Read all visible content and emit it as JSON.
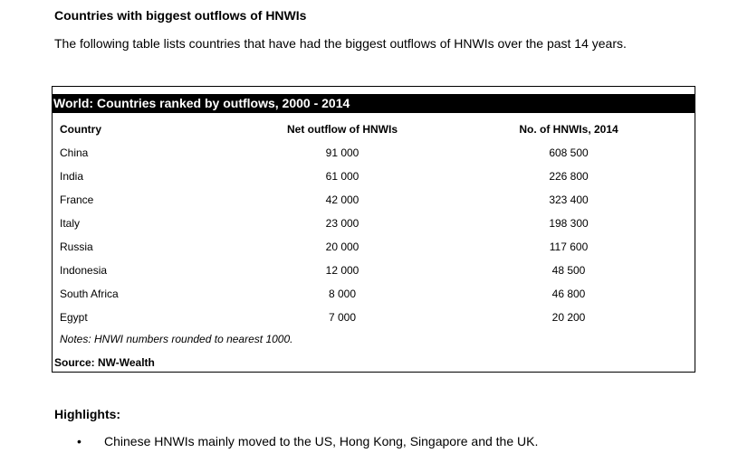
{
  "heading": "Countries with biggest outflows of HNWIs",
  "intro": "The following table lists countries that have had the biggest outflows of HNWIs over the past 14 years.",
  "table": {
    "title": "World: Countries ranked by outflows, 2000 - 2014",
    "columns": [
      "Country",
      "Net outflow of HNWIs",
      "No. of HNWIs, 2014"
    ],
    "rows": [
      [
        "China",
        "91 000",
        "608 500"
      ],
      [
        "India",
        "61 000",
        "226 800"
      ],
      [
        "France",
        "42 000",
        "323 400"
      ],
      [
        "Italy",
        "23 000",
        "198 300"
      ],
      [
        "Russia",
        "20 000",
        "117 600"
      ],
      [
        "Indonesia",
        "12 000",
        "48 500"
      ],
      [
        "South Africa",
        "8 000",
        "46 800"
      ],
      [
        "Egypt",
        "7 000",
        "20 200"
      ]
    ],
    "notes": "Notes: HNWI numbers rounded to nearest 1000.",
    "source": "Source: NW-Wealth"
  },
  "highlights": {
    "title": "Highlights:",
    "bullets": [
      "Chinese HNWIs mainly moved to the US, Hong Kong, Singapore and the UK."
    ]
  }
}
